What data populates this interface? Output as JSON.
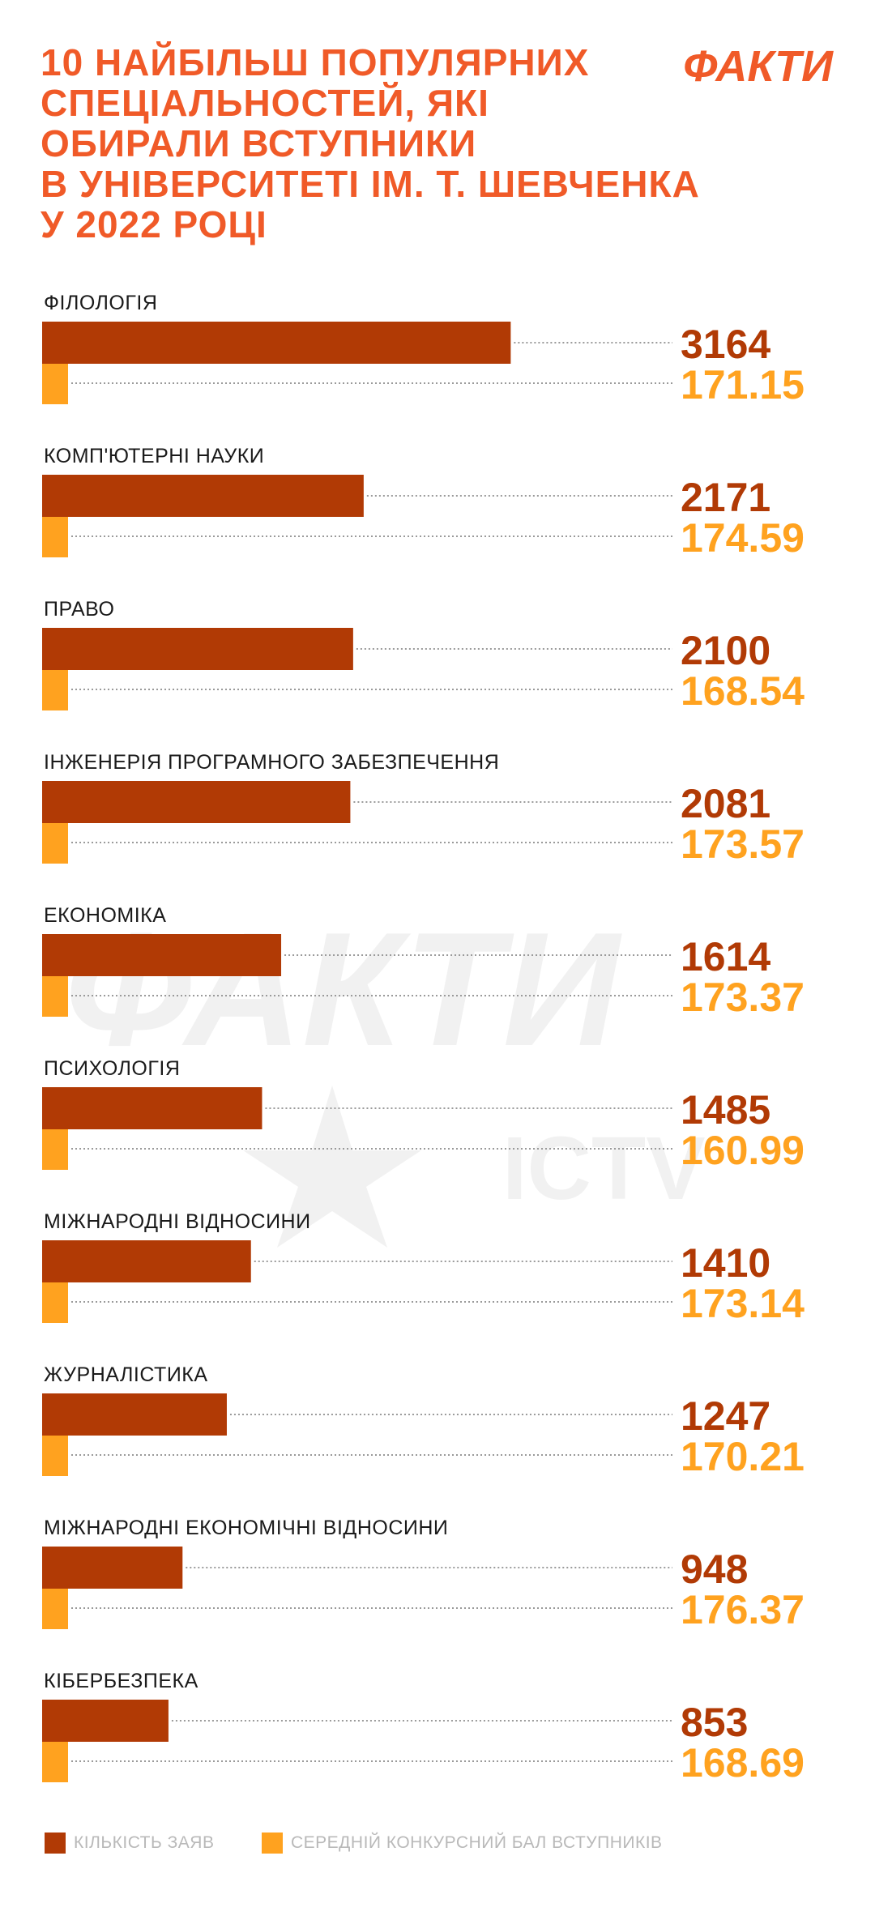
{
  "header": {
    "title_lines": [
      "10 НАЙБІЛЬШ ПОПУЛЯРНИХ",
      "СПЕЦІАЛЬНОСТЕЙ, ЯКІ",
      "ОБИРАЛИ ВСТУПНИКИ",
      "В УНІВЕРСИТЕТІ ІМ. Т. ШЕВЧЕНКА",
      "У 2022 РОЦІ"
    ],
    "logo_text": "ФАКТИ"
  },
  "watermark": {
    "main": "ФАКТИ",
    "sub": "ICTV"
  },
  "colors": {
    "title": "#f05a28",
    "series_applications": "#b13a05",
    "series_score": "#ffa21f",
    "category_label": "#1a1a1a",
    "legend_text": "#b9b9b9",
    "leader_line": "#9a9a9a"
  },
  "legend": {
    "applications_label": "КІЛЬКІСТЬ ЗАЯВ",
    "score_label": "СЕРЕДНІЙ КОНКУРСНИЙ БАЛ ВСТУПНИКІВ"
  },
  "chart_data": {
    "type": "bar",
    "orientation": "horizontal",
    "title": "10 НАЙБІЛЬШ ПОПУЛЯРНИХ СПЕЦІАЛЬНОСТЕЙ, ЯКІ ОБИРАЛИ ВСТУПНИКИ В УНІВЕРСИТЕТІ ІМ. Т. ШЕВЧЕНКА У 2022 РОЦІ",
    "categories": [
      "ФІЛОЛОГІЯ",
      "КОМП'ЮТЕРНІ НАУКИ",
      "ПРАВО",
      "ІНЖЕНЕРІЯ ПРОГРАМНОГО ЗАБЕЗПЕЧЕННЯ",
      "ЕКОНОМІКА",
      "ПСИХОЛОГІЯ",
      "МІЖНАРОДНІ ВІДНОСИНИ",
      "ЖУРНАЛІСТИКА",
      "МІЖНАРОДНІ ЕКОНОМІЧНІ ВІДНОСИНИ",
      "КІБЕРБЕЗПЕКА"
    ],
    "series": [
      {
        "name": "КІЛЬКІСТЬ ЗАЯВ",
        "values": [
          3164,
          2171,
          2100,
          2081,
          1614,
          1485,
          1410,
          1247,
          948,
          853
        ],
        "labels": [
          "3164",
          "2171",
          "2100",
          "2081",
          "1614",
          "1485",
          "1410",
          "1247",
          "948",
          "853"
        ]
      },
      {
        "name": "СЕРЕДНІЙ КОНКУРСНИЙ БАЛ ВСТУПНИКІВ",
        "values": [
          171.15,
          174.59,
          168.54,
          173.57,
          173.37,
          160.99,
          173.14,
          170.21,
          176.37,
          168.69
        ],
        "labels": [
          "171.15",
          "174.59",
          "168.54",
          "173.57",
          "173.37",
          "160.99",
          "173.14",
          "170.21",
          "176.37",
          "168.69"
        ]
      }
    ],
    "legend_position": "bottom",
    "grid": false
  }
}
